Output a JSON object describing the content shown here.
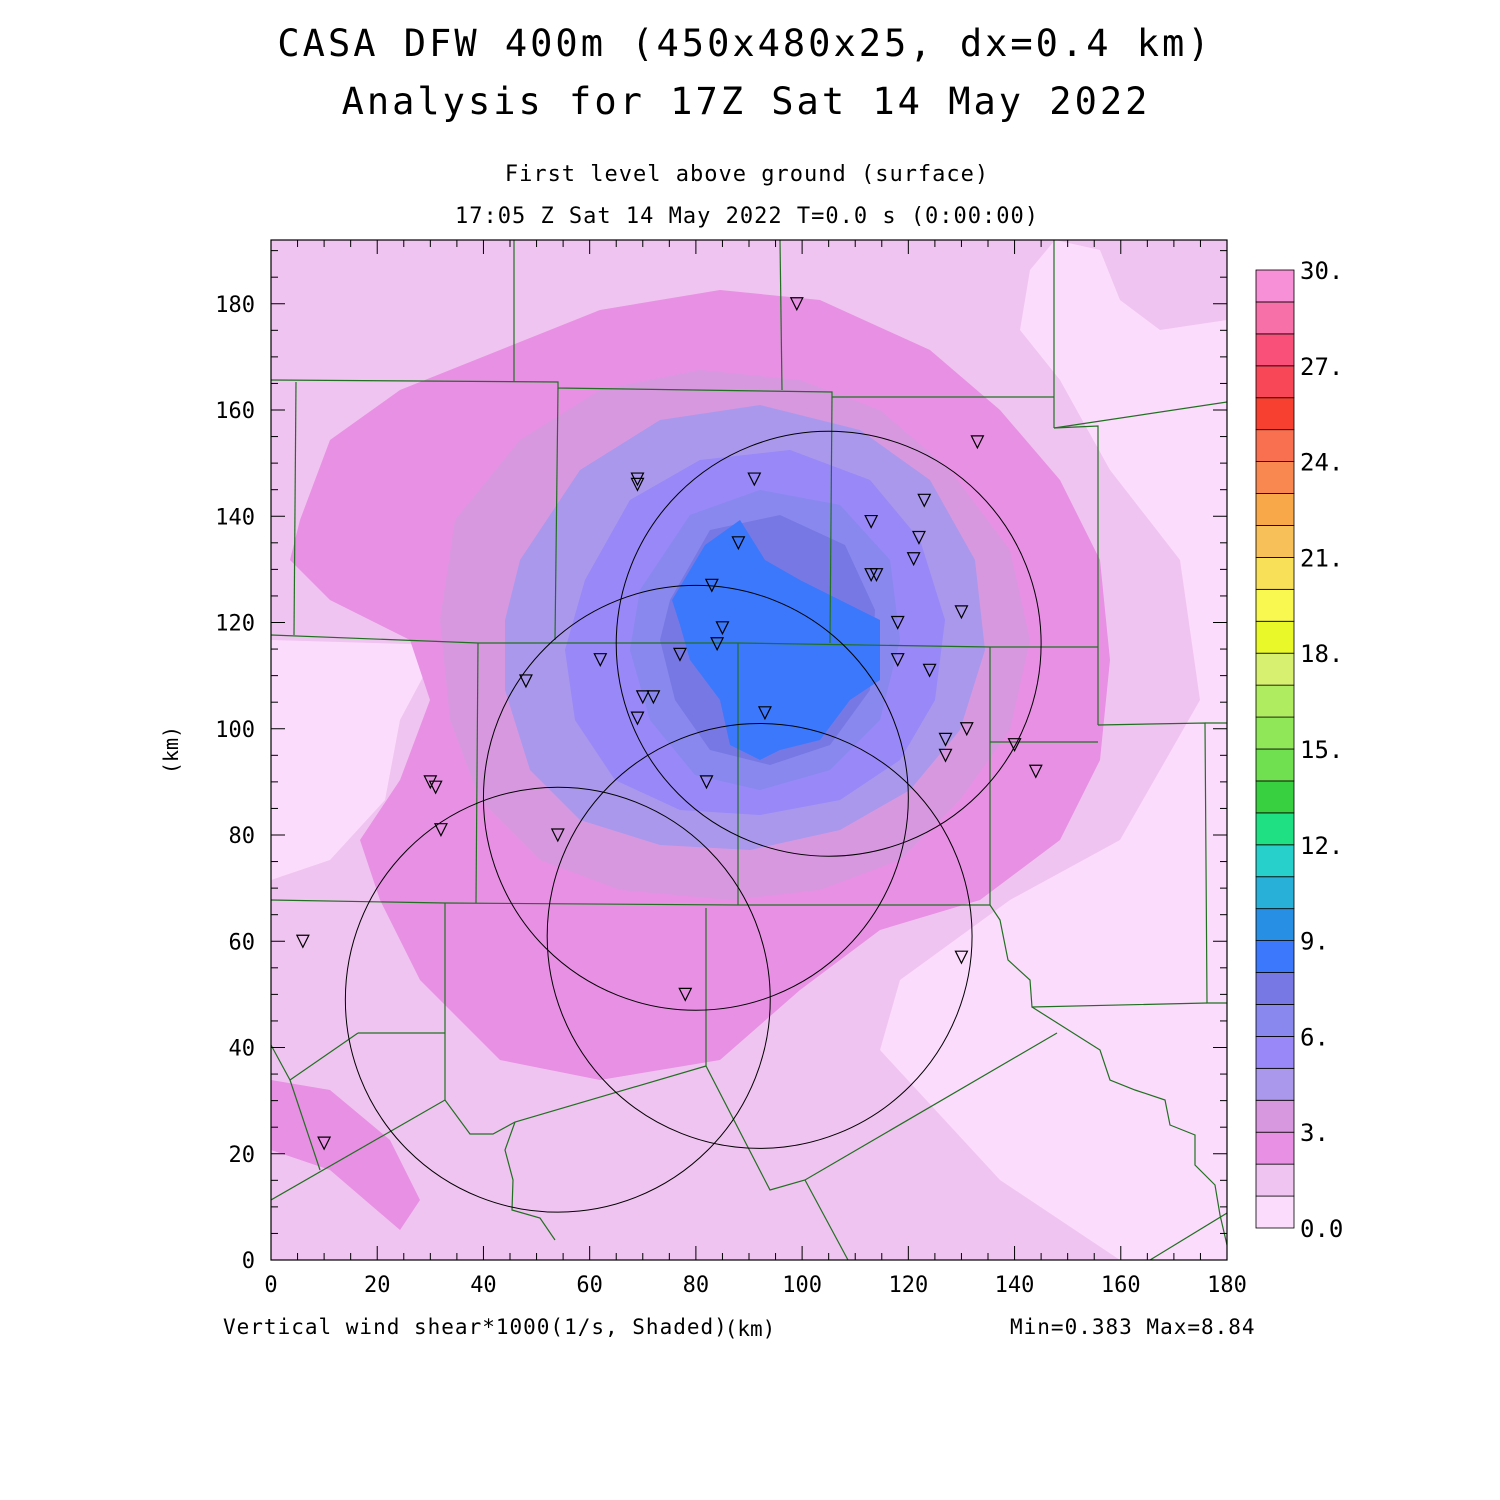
{
  "title_line1": "CASA DFW 400m (450x480x25, dx=0.4 km)",
  "title_line2": "Analysis for 17Z Sat 14 May 2022",
  "subtitle_level": "First level above ground (surface)",
  "subtitle_time": "17:05 Z Sat 14 May 2022    T=0.0 s (0:00:00)",
  "axes": {
    "x_ticks": [
      "0",
      "20",
      "40",
      "60",
      "80",
      "100",
      "120",
      "140",
      "160",
      "180"
    ],
    "y_ticks": [
      "0",
      "20",
      "40",
      "60",
      "80",
      "100",
      "120",
      "140",
      "160",
      "180"
    ],
    "y_label": "(km)",
    "x_label": "(km)"
  },
  "field_label": "Vertical wind shear*1000(1/s, Shaded)",
  "min_max": "Min=0.383 Max=8.84",
  "colorbar": {
    "labels": [
      "0.0",
      "3.",
      "6.",
      "9.",
      "12.",
      "15.",
      "18.",
      "21.",
      "24.",
      "27.",
      "30."
    ],
    "colors": [
      "#fcdcfc",
      "#f0c4f0",
      "#e890e4",
      "#d898e0",
      "#aa98ec",
      "#9888f8",
      "#8888ee",
      "#7878e4",
      "#3c78fc",
      "#2890e4",
      "#28b0d8",
      "#28d0cc",
      "#20e084",
      "#38d040",
      "#70e050",
      "#90e858",
      "#b0ec60",
      "#d8f070",
      "#e8f828",
      "#f8f850",
      "#f8e058",
      "#f8c058",
      "#f8a848",
      "#f88850",
      "#f87050",
      "#f84030",
      "#f84858",
      "#f85078",
      "#f870a8",
      "#f890d8"
    ]
  },
  "chart_data": {
    "type": "heatmap",
    "title": "CASA DFW 400m (450x480x25, dx=0.4 km)",
    "subtitle": "Analysis for 17Z Sat 14 May 2022",
    "field": "Vertical wind shear*1000(1/s, Shaded)",
    "xlabel": "(km)",
    "ylabel": "(km)",
    "xlim": [
      0,
      180
    ],
    "ylim": [
      0,
      192
    ],
    "value_range": [
      0.383,
      8.84
    ],
    "colorbar_range": [
      0,
      30
    ],
    "maximum_region_center_km": [
      95,
      115
    ],
    "radar_rings": [
      {
        "center": [
          105,
          116
        ],
        "radius": 40
      },
      {
        "center": [
          80,
          87
        ],
        "radius": 40
      },
      {
        "center": [
          92,
          61
        ],
        "radius": 40
      },
      {
        "center": [
          54,
          49
        ],
        "radius": 40
      }
    ],
    "stations": [
      [
        99,
        180
      ],
      [
        133,
        154
      ],
      [
        69,
        147
      ],
      [
        69,
        146
      ],
      [
        91,
        147
      ],
      [
        123,
        143
      ],
      [
        113,
        139
      ],
      [
        88,
        135
      ],
      [
        122,
        136
      ],
      [
        121,
        132
      ],
      [
        113,
        129
      ],
      [
        114,
        129
      ],
      [
        83,
        127
      ],
      [
        130,
        122
      ],
      [
        118,
        120
      ],
      [
        85,
        119
      ],
      [
        84,
        116
      ],
      [
        62,
        113
      ],
      [
        77,
        114
      ],
      [
        118,
        113
      ],
      [
        124,
        111
      ],
      [
        48,
        109
      ],
      [
        70,
        106
      ],
      [
        72,
        106
      ],
      [
        69,
        102
      ],
      [
        93,
        103
      ],
      [
        131,
        100
      ],
      [
        127,
        98
      ],
      [
        140,
        97
      ],
      [
        127,
        95
      ],
      [
        144,
        92
      ],
      [
        30,
        90
      ],
      [
        31,
        89
      ],
      [
        82,
        90
      ],
      [
        32,
        81
      ],
      [
        54,
        80
      ],
      [
        6,
        60
      ],
      [
        130,
        57
      ],
      [
        78,
        50
      ],
      [
        10,
        22
      ]
    ]
  }
}
